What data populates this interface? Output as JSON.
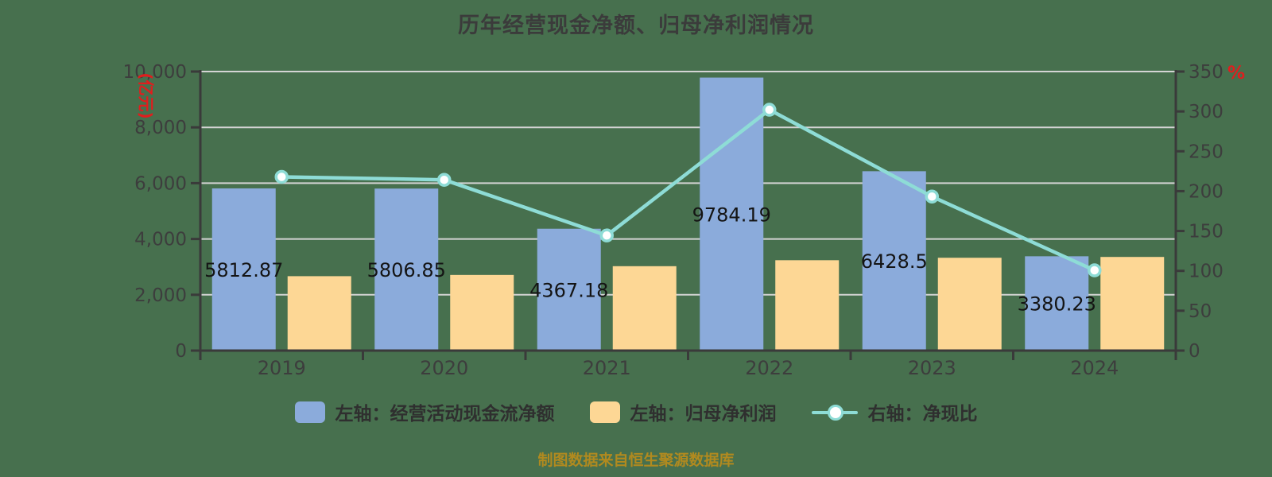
{
  "title": "历年经营现金净额、归母净利润情况",
  "source_note": "制图数据来自恒生聚源数据库",
  "colors": {
    "background": "#47704e",
    "bar_blue": "#8babdb",
    "bar_yellow": "#fdd795",
    "line_teal": "#8edcd6",
    "marker_fill": "#ffffff",
    "axis": "#3a3a3a",
    "grid": "#d4d4d4",
    "tick_text": "#3d3d3d",
    "value_label": "#141414",
    "unit_red": "#e11d1d",
    "source_gold": "#b18a1f"
  },
  "chart_data": {
    "type": "bar",
    "subtype": "bar-line-combo",
    "title": "历年经营现金净额、归母净利润情况",
    "categories": [
      "2019",
      "2020",
      "2021",
      "2022",
      "2023",
      "2024"
    ],
    "series": [
      {
        "name": "左轴：经营活动现金流净额",
        "type": "bar",
        "axis": "left",
        "color": "#8babdb",
        "values": [
          5812.87,
          5806.85,
          4367.18,
          9784.19,
          6428.5,
          3380.23
        ],
        "labels_shown": true
      },
      {
        "name": "左轴：归母净利润",
        "type": "bar",
        "axis": "left",
        "color": "#fdd795",
        "values": [
          2667,
          2711,
          3025,
          3239,
          3327,
          3356
        ],
        "labels_shown": false,
        "values_estimated_from_gridlines": true
      },
      {
        "name": "右轴：净现比",
        "type": "line",
        "axis": "right",
        "color": "#8edcd6",
        "values": [
          217.9,
          214.2,
          144.4,
          302.1,
          193.2,
          100.7
        ],
        "labels_shown": false,
        "values_estimated_from_gridlines": true
      }
    ],
    "left_axis": {
      "unit": "(亿元)",
      "min": 0,
      "max": 10000,
      "step": 2000
    },
    "right_axis": {
      "unit": "%",
      "min": 0,
      "max": 350,
      "step": 50
    },
    "grid": true,
    "legend_position": "bottom"
  }
}
